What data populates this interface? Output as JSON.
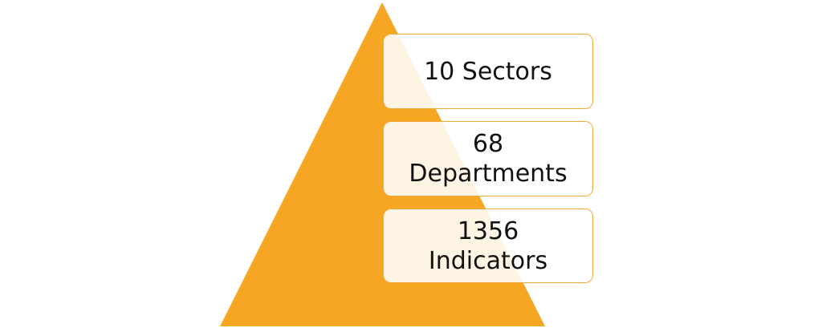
{
  "pyramid": {
    "color": "#f5a623",
    "levels": [
      {
        "label": "10 Sectors"
      },
      {
        "label": "68\nDepartments"
      },
      {
        "label": "1356\nIndicators"
      }
    ]
  }
}
